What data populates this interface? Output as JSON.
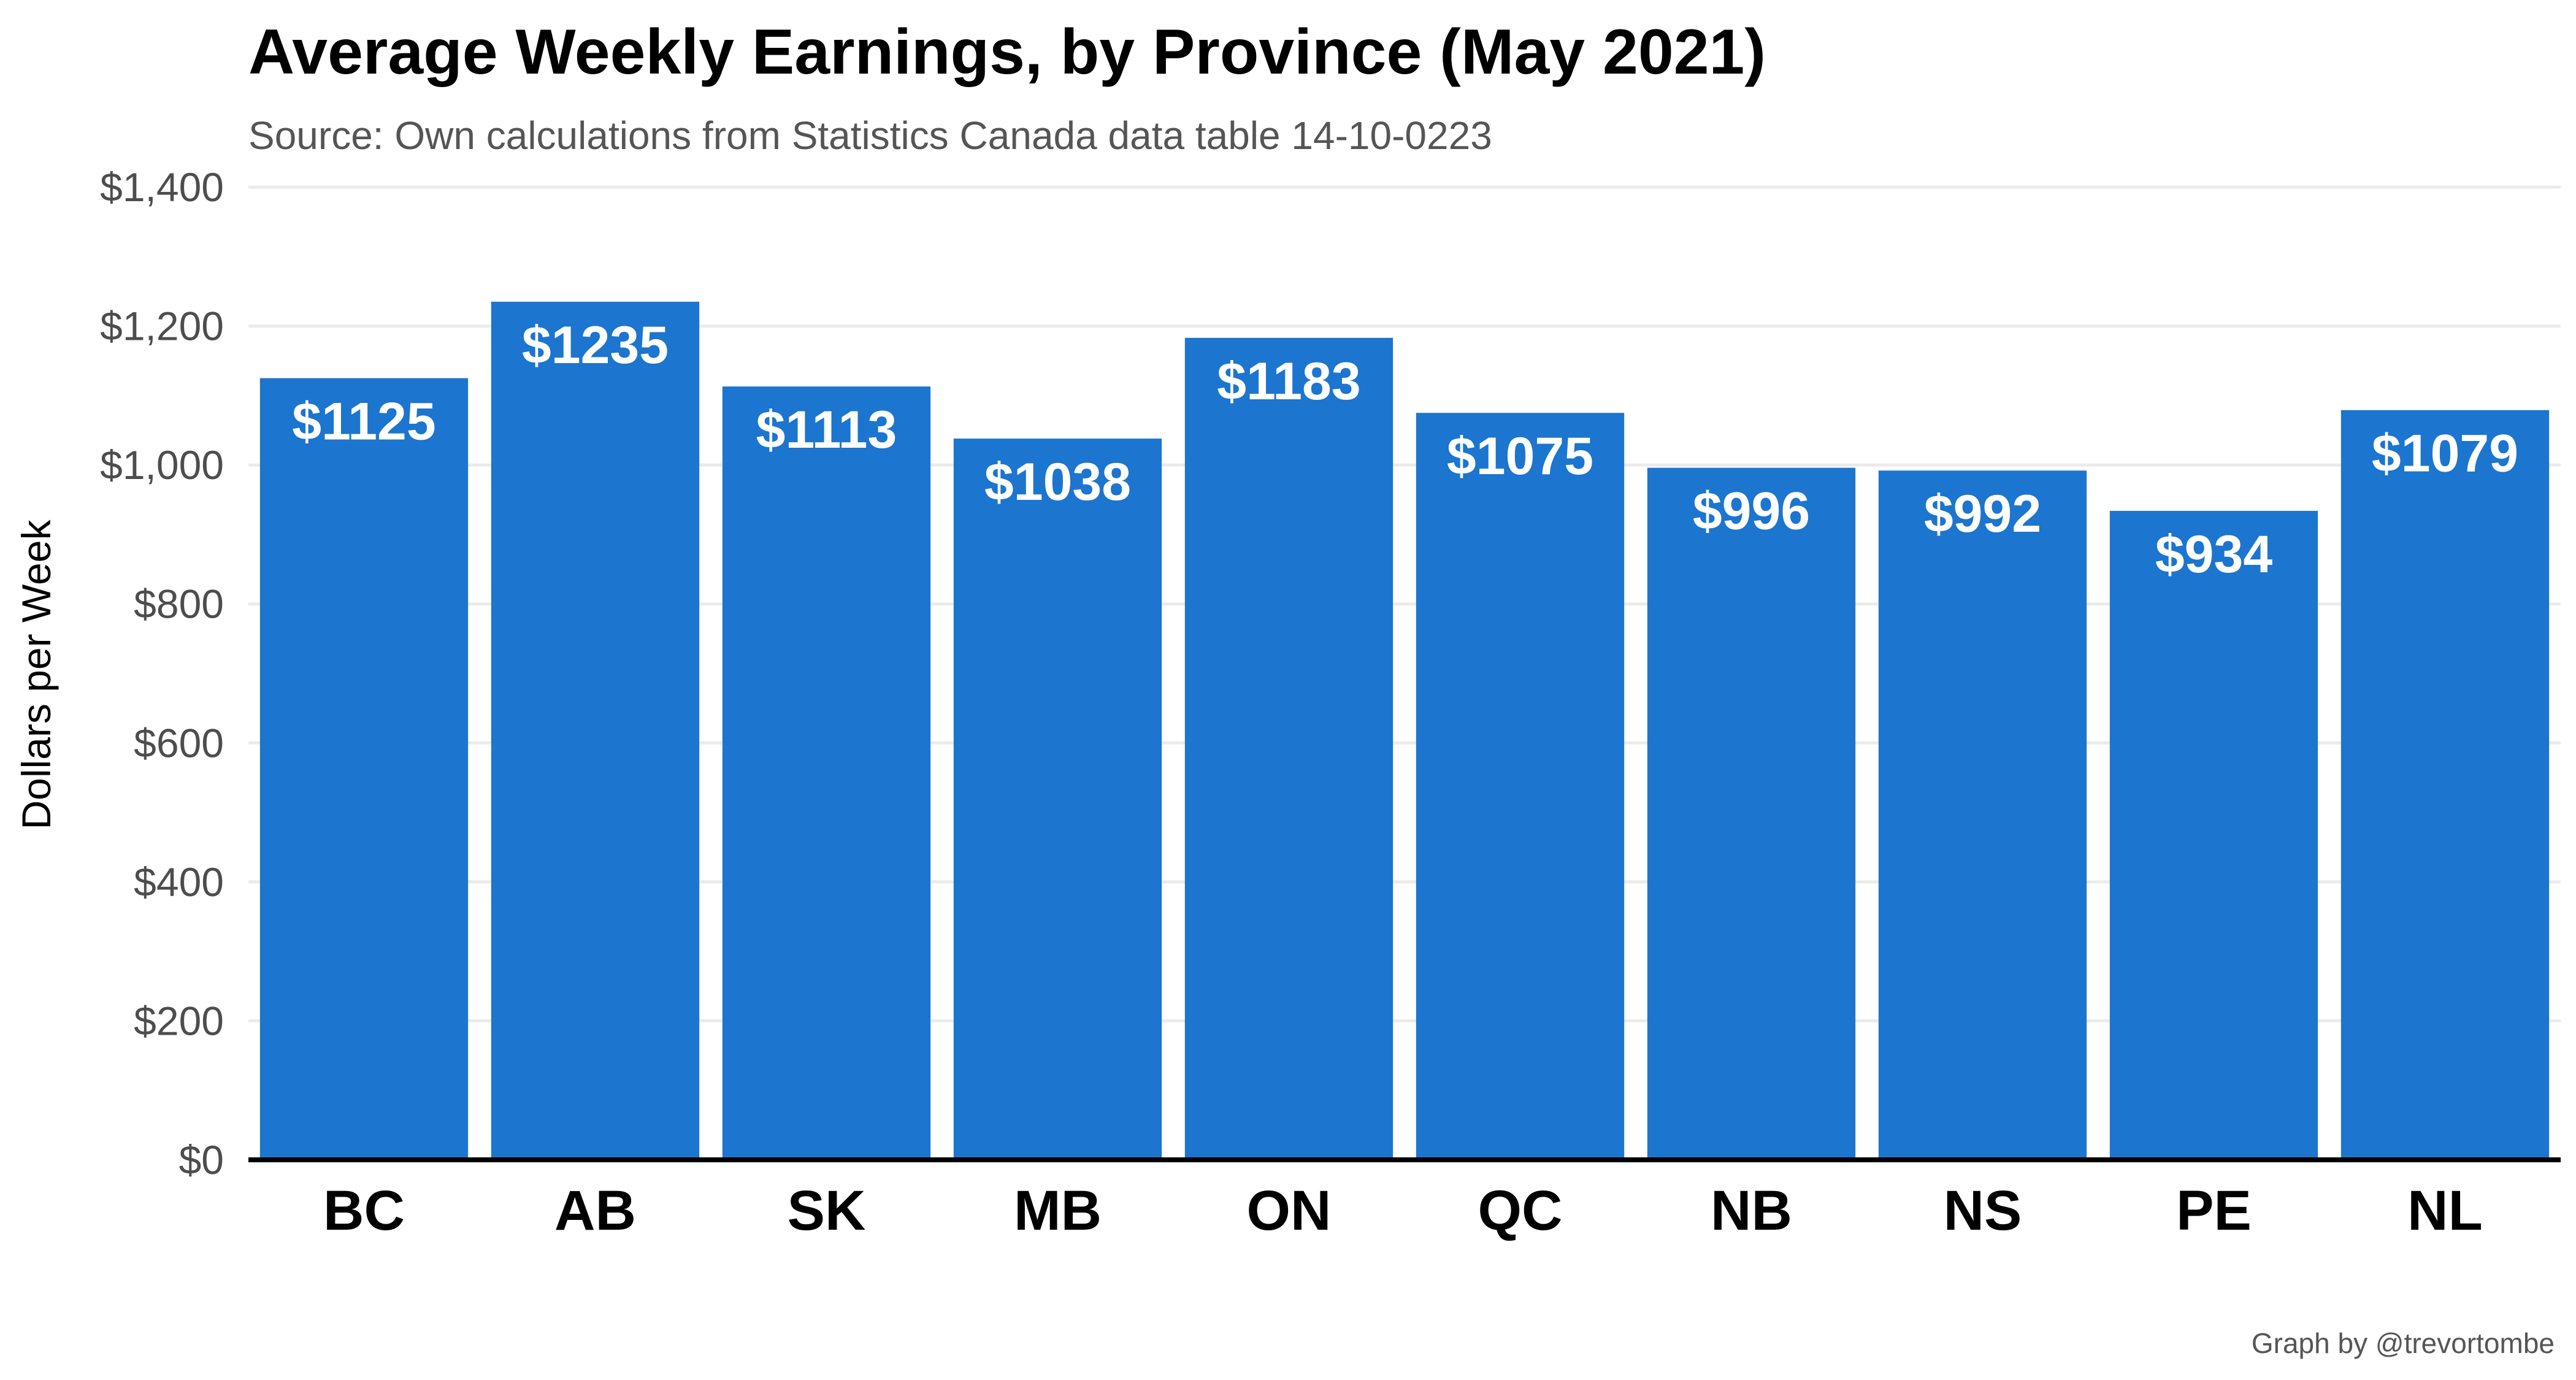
{
  "chart_data": {
    "type": "bar",
    "title": "Average Weekly Earnings, by Province (May 2021)",
    "subtitle": "Source: Own calculations from Statistics Canada data table 14-10-0223",
    "ylabel": "Dollars per Week",
    "xlabel": "",
    "caption": "Graph by @trevortombe",
    "categories": [
      "BC",
      "AB",
      "SK",
      "MB",
      "ON",
      "QC",
      "NB",
      "NS",
      "PE",
      "NL"
    ],
    "values": [
      1125,
      1235,
      1113,
      1038,
      1183,
      1075,
      996,
      992,
      934,
      1079
    ],
    "data_labels": [
      "$1125",
      "$1235",
      "$1113",
      "$1038",
      "$1183",
      "$1075",
      "$996",
      "$992",
      "$934",
      "$1079"
    ],
    "ylim": [
      0,
      1400
    ],
    "yticks": [
      0,
      200,
      400,
      600,
      800,
      1000,
      1200,
      1400
    ],
    "ytick_labels": [
      "$0",
      "$200",
      "$400",
      "$600",
      "$800",
      "$1,000",
      "$1,200",
      "$1,400"
    ],
    "bar_color": "#1c75cf",
    "grid": true,
    "legend": "none"
  }
}
